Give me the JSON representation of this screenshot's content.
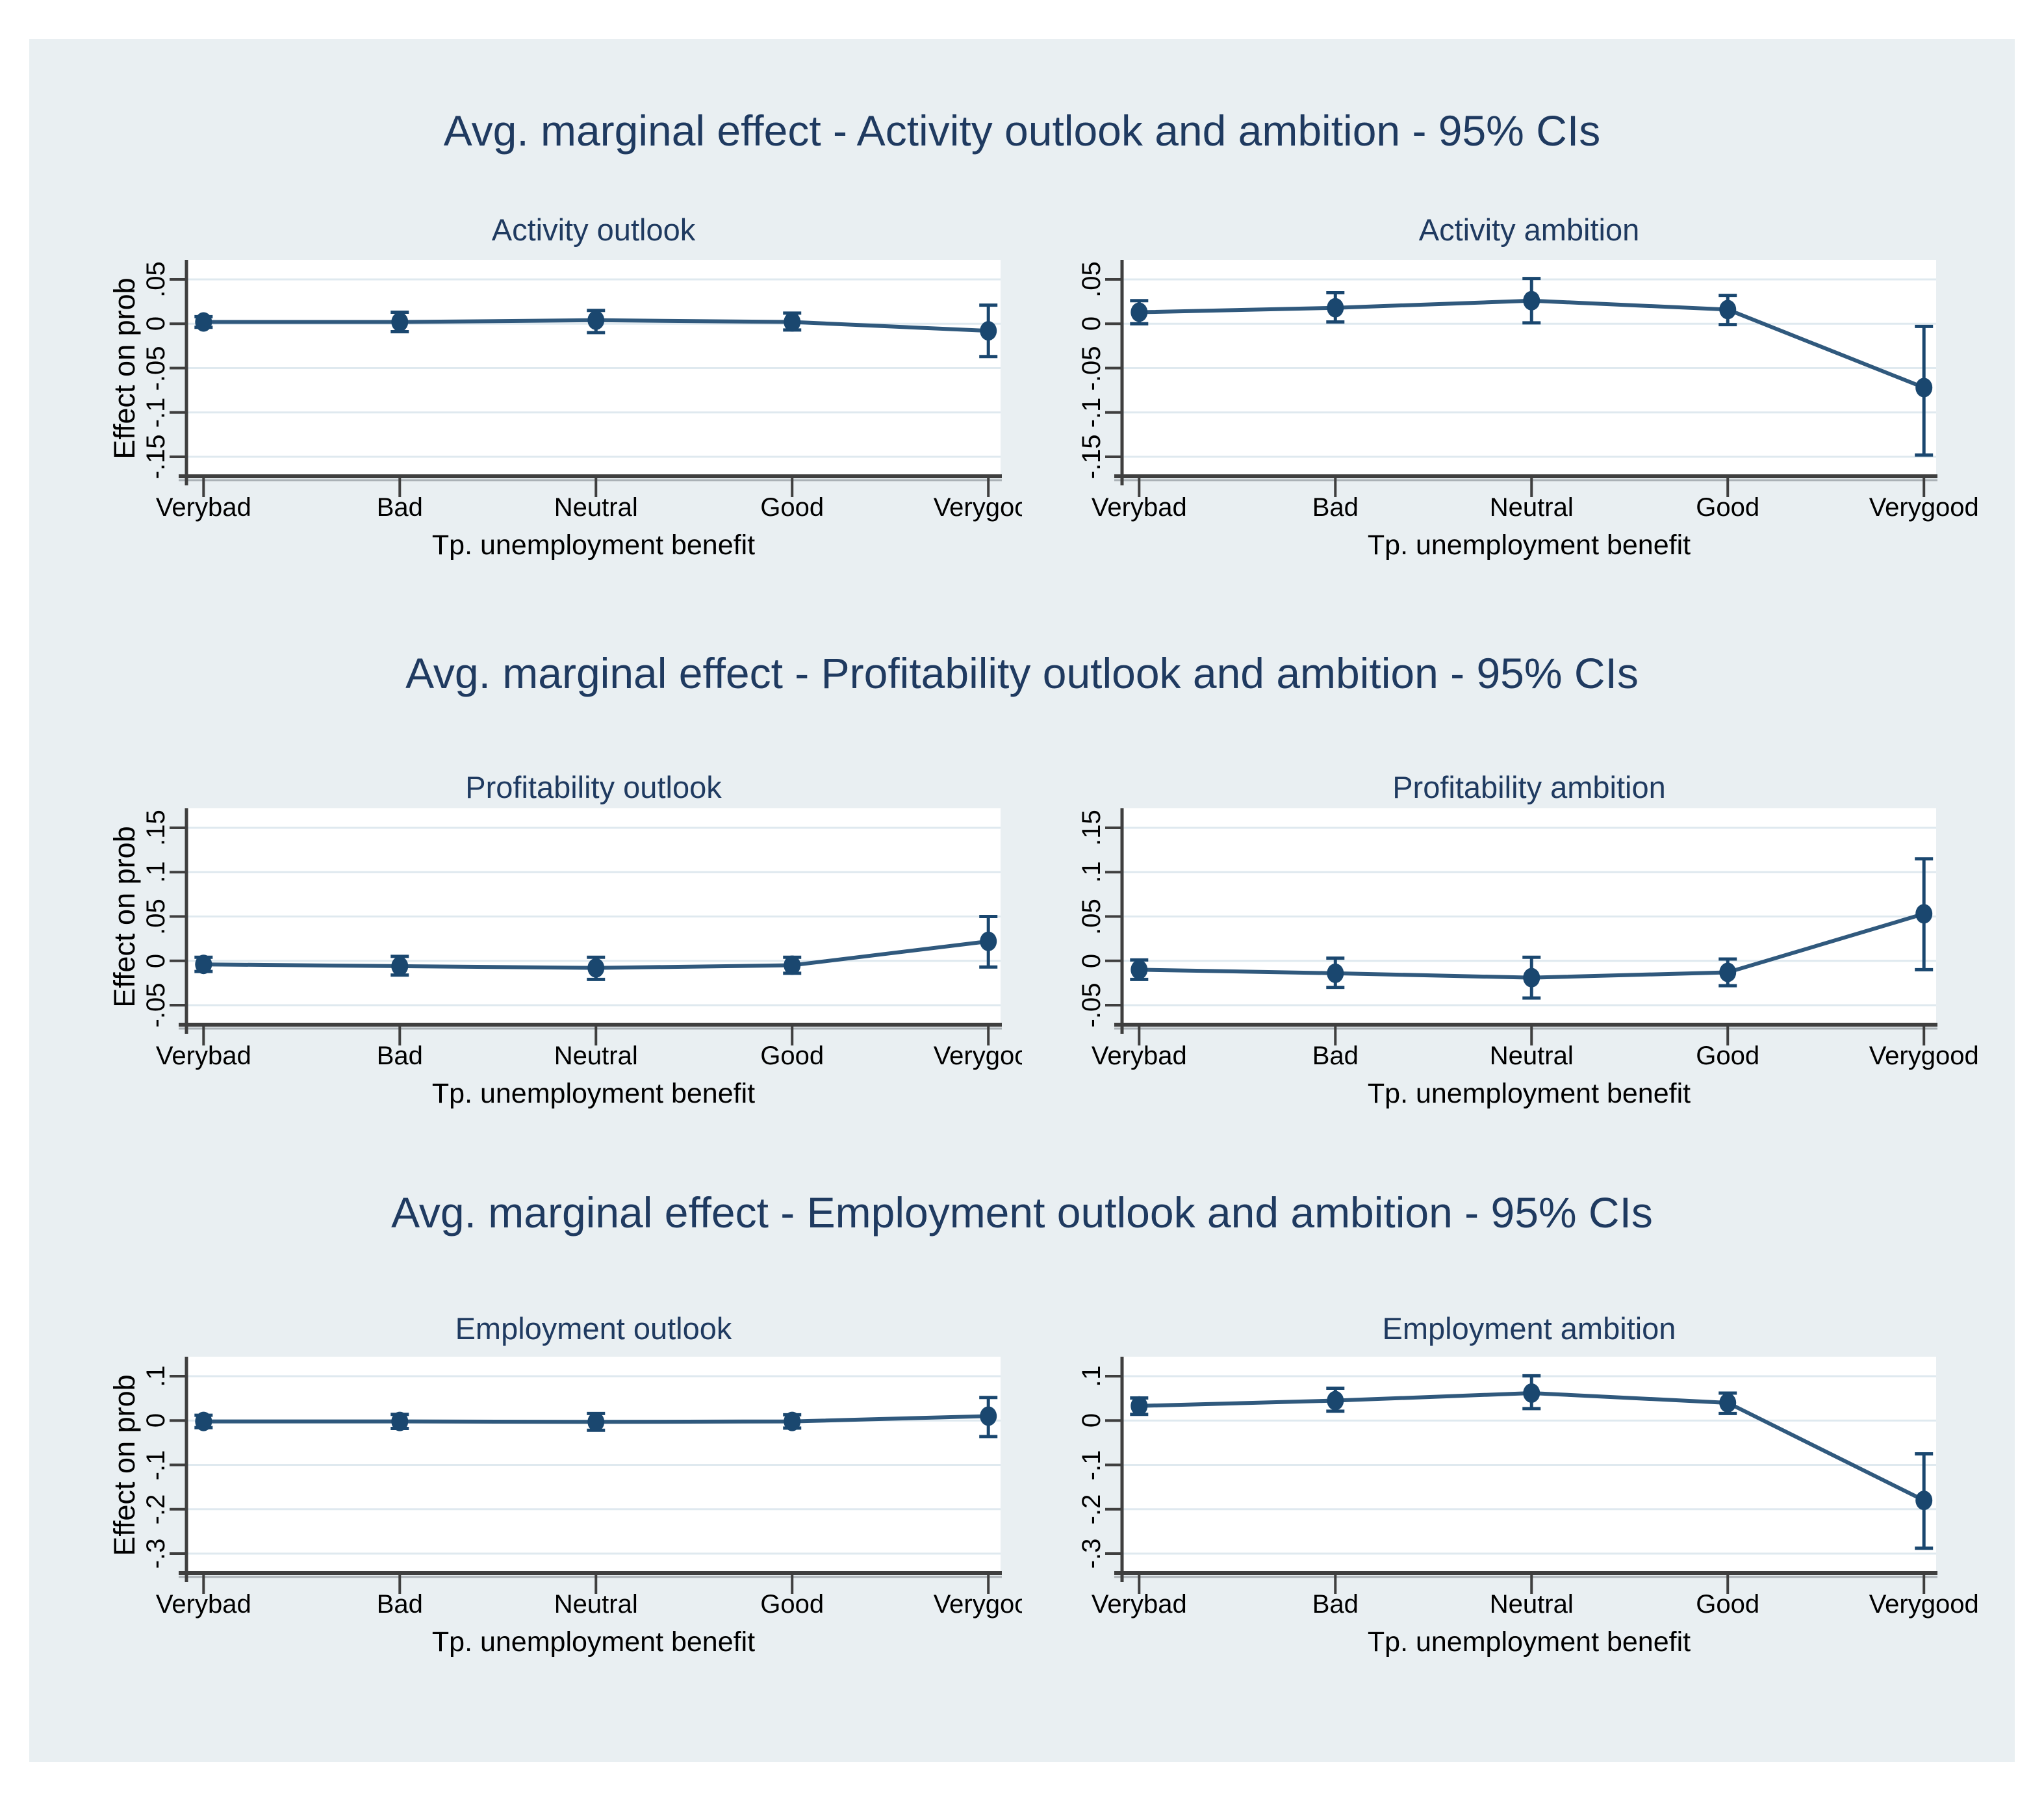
{
  "page": {
    "background": "#ffffff",
    "canvas_background": "#e9eff2"
  },
  "colors": {
    "series": "#1a476f",
    "grid": "#dfe9ef",
    "axis": "#3f3f3f",
    "axis_shadow": "#aab1b6",
    "plot_background": "#ffffff",
    "text": "#000000",
    "title": "#1f3a60"
  },
  "shared": {
    "xlabel": "Tp. unemployment benefit",
    "ylabel": "Effect on prob",
    "categories": [
      "Verybad",
      "Bad",
      "Neutral",
      "Good",
      "Verygood"
    ]
  },
  "chart_data": [
    {
      "type": "line",
      "title": "Avg. marginal effect - Activity outlook and ambition - 95% CIs",
      "categories": [
        "Verybad",
        "Bad",
        "Neutral",
        "Good",
        "Verygood"
      ],
      "xlabel": "Tp. unemployment benefit",
      "ylabel": "Effect on prob",
      "legend": "none",
      "grid": "horizontal",
      "panels": [
        {
          "subtitle": "Activity outlook",
          "show_ylabel": true,
          "ylim": [
            -0.172,
            0.072
          ],
          "yticks": [
            {
              "value": 0.05,
              "label": ".05"
            },
            {
              "value": 0,
              "label": "0"
            },
            {
              "value": -0.05,
              "label": "-.05"
            },
            {
              "value": -0.1,
              "label": "-.1"
            },
            {
              "value": -0.15,
              "label": "-.15"
            }
          ],
          "values": [
            0.002,
            0.002,
            0.004,
            0.002,
            -0.008
          ],
          "ci_low": [
            -0.004,
            -0.009,
            -0.01,
            -0.007,
            -0.037
          ],
          "ci_high": [
            0.008,
            0.013,
            0.015,
            0.012,
            0.021
          ]
        },
        {
          "subtitle": "Activity ambition",
          "show_ylabel": false,
          "ylim": [
            -0.172,
            0.072
          ],
          "yticks": [
            {
              "value": 0.05,
              "label": ".05"
            },
            {
              "value": 0,
              "label": "0"
            },
            {
              "value": -0.05,
              "label": "-.05"
            },
            {
              "value": -0.1,
              "label": "-.1"
            },
            {
              "value": -0.15,
              "label": "-.15"
            }
          ],
          "values": [
            0.013,
            0.018,
            0.026,
            0.016,
            -0.072
          ],
          "ci_low": [
            0.0,
            0.002,
            0.001,
            -0.001,
            -0.148
          ],
          "ci_high": [
            0.026,
            0.035,
            0.051,
            0.032,
            -0.003
          ]
        }
      ]
    },
    {
      "type": "line",
      "title": "Avg. marginal effect - Profitability outlook and ambition - 95% CIs",
      "categories": [
        "Verybad",
        "Bad",
        "Neutral",
        "Good",
        "Verygood"
      ],
      "xlabel": "Tp. unemployment benefit",
      "ylabel": "Effect on prob",
      "legend": "none",
      "grid": "horizontal",
      "panels": [
        {
          "subtitle": "Profitability outlook",
          "show_ylabel": true,
          "ylim": [
            -0.072,
            0.172
          ],
          "yticks": [
            {
              "value": 0.15,
              "label": ".15"
            },
            {
              "value": 0.1,
              "label": ".1"
            },
            {
              "value": 0.05,
              "label": ".05"
            },
            {
              "value": 0,
              "label": "0"
            },
            {
              "value": -0.05,
              "label": "-.05"
            }
          ],
          "values": [
            -0.004,
            -0.006,
            -0.008,
            -0.005,
            0.022
          ],
          "ci_low": [
            -0.012,
            -0.016,
            -0.021,
            -0.014,
            -0.007
          ],
          "ci_high": [
            0.004,
            0.005,
            0.004,
            0.004,
            0.05
          ]
        },
        {
          "subtitle": "Profitability ambition",
          "show_ylabel": false,
          "ylim": [
            -0.072,
            0.172
          ],
          "yticks": [
            {
              "value": 0.15,
              "label": ".15"
            },
            {
              "value": 0.1,
              "label": ".1"
            },
            {
              "value": 0.05,
              "label": ".05"
            },
            {
              "value": 0,
              "label": "0"
            },
            {
              "value": -0.05,
              "label": "-.05"
            }
          ],
          "values": [
            -0.01,
            -0.014,
            -0.019,
            -0.013,
            0.053
          ],
          "ci_low": [
            -0.021,
            -0.03,
            -0.042,
            -0.028,
            -0.01
          ],
          "ci_high": [
            0.001,
            0.003,
            0.004,
            0.002,
            0.115
          ]
        }
      ]
    },
    {
      "type": "line",
      "title": "Avg. marginal effect - Employment outlook and ambition - 95% CIs",
      "categories": [
        "Verybad",
        "Bad",
        "Neutral",
        "Good",
        "Verygood"
      ],
      "xlabel": "Tp. unemployment benefit",
      "ylabel": "Effect on prob",
      "legend": "none",
      "grid": "horizontal",
      "panels": [
        {
          "subtitle": "Employment outlook",
          "show_ylabel": true,
          "ylim": [
            -0.344,
            0.144
          ],
          "yticks": [
            {
              "value": 0.1,
              "label": ".1"
            },
            {
              "value": 0,
              "label": "0"
            },
            {
              "value": -0.1,
              "label": "-.1"
            },
            {
              "value": -0.2,
              "label": "-.2"
            },
            {
              "value": -0.3,
              "label": "-.3"
            }
          ],
          "values": [
            -0.002,
            -0.002,
            -0.003,
            -0.002,
            0.01
          ],
          "ci_low": [
            -0.016,
            -0.018,
            -0.022,
            -0.017,
            -0.036
          ],
          "ci_high": [
            0.012,
            0.014,
            0.016,
            0.013,
            0.052
          ]
        },
        {
          "subtitle": "Employment ambition",
          "show_ylabel": false,
          "ylim": [
            -0.344,
            0.144
          ],
          "yticks": [
            {
              "value": 0.1,
              "label": ".1"
            },
            {
              "value": 0,
              "label": "0"
            },
            {
              "value": -0.1,
              "label": "-.1"
            },
            {
              "value": -0.2,
              "label": "-.2"
            },
            {
              "value": -0.3,
              "label": "-.3"
            }
          ],
          "values": [
            0.033,
            0.045,
            0.062,
            0.04,
            -0.18
          ],
          "ci_low": [
            0.014,
            0.021,
            0.027,
            0.016,
            -0.288
          ],
          "ci_high": [
            0.051,
            0.073,
            0.101,
            0.062,
            -0.075
          ]
        }
      ]
    }
  ]
}
